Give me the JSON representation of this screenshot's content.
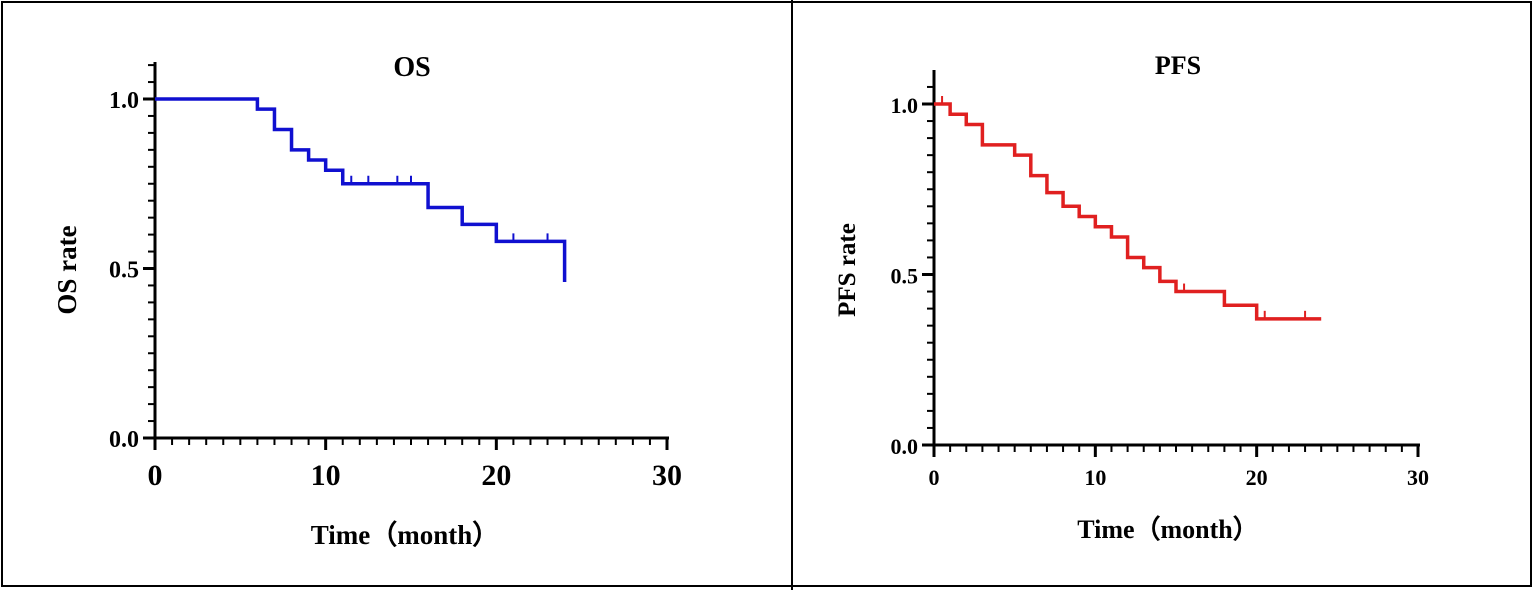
{
  "chart_data": [
    {
      "type": "line",
      "subtype": "kaplan-meier",
      "title": "OS",
      "xlabel": "Time（month）",
      "ylabel": "OS rate",
      "xlim": [
        0,
        30
      ],
      "ylim": [
        0,
        1.0
      ],
      "x_ticks": [
        "0",
        "10",
        "20",
        "30"
      ],
      "y_ticks": [
        "0.0",
        "0.5",
        "1.0"
      ],
      "grid": false,
      "color": "#1010d0",
      "steps": [
        [
          0,
          1.0
        ],
        [
          6,
          0.97
        ],
        [
          7,
          0.91
        ],
        [
          8,
          0.85
        ],
        [
          9,
          0.82
        ],
        [
          10,
          0.79
        ],
        [
          11,
          0.75
        ],
        [
          16,
          0.68
        ],
        [
          18,
          0.63
        ],
        [
          20,
          0.58
        ],
        [
          24,
          0.46
        ]
      ],
      "censored": [
        [
          11.5,
          0.75
        ],
        [
          12.5,
          0.75
        ],
        [
          14.2,
          0.75
        ],
        [
          15,
          0.75
        ],
        [
          21,
          0.58
        ],
        [
          23,
          0.58
        ]
      ],
      "end_x": 24
    },
    {
      "type": "line",
      "subtype": "kaplan-meier",
      "title": "PFS",
      "xlabel": "Time（month）",
      "ylabel": "PFS rate",
      "xlim": [
        0,
        30
      ],
      "ylim": [
        0,
        1.0
      ],
      "x_ticks": [
        "0",
        "10",
        "20",
        "30"
      ],
      "y_ticks": [
        "0.0",
        "0.5",
        "1.0"
      ],
      "grid": false,
      "color": "#e02020",
      "steps": [
        [
          0,
          1.0
        ],
        [
          1,
          0.97
        ],
        [
          2,
          0.94
        ],
        [
          3,
          0.88
        ],
        [
          5,
          0.85
        ],
        [
          6,
          0.79
        ],
        [
          7,
          0.74
        ],
        [
          8,
          0.7
        ],
        [
          9,
          0.67
        ],
        [
          10,
          0.64
        ],
        [
          11,
          0.61
        ],
        [
          12,
          0.55
        ],
        [
          13,
          0.52
        ],
        [
          14,
          0.48
        ],
        [
          15,
          0.45
        ],
        [
          18,
          0.41
        ],
        [
          20,
          0.37
        ]
      ],
      "censored": [
        [
          0.5,
          1.0
        ],
        [
          15.5,
          0.45
        ],
        [
          20.5,
          0.37
        ],
        [
          23,
          0.37
        ]
      ],
      "end_x": 24
    }
  ]
}
